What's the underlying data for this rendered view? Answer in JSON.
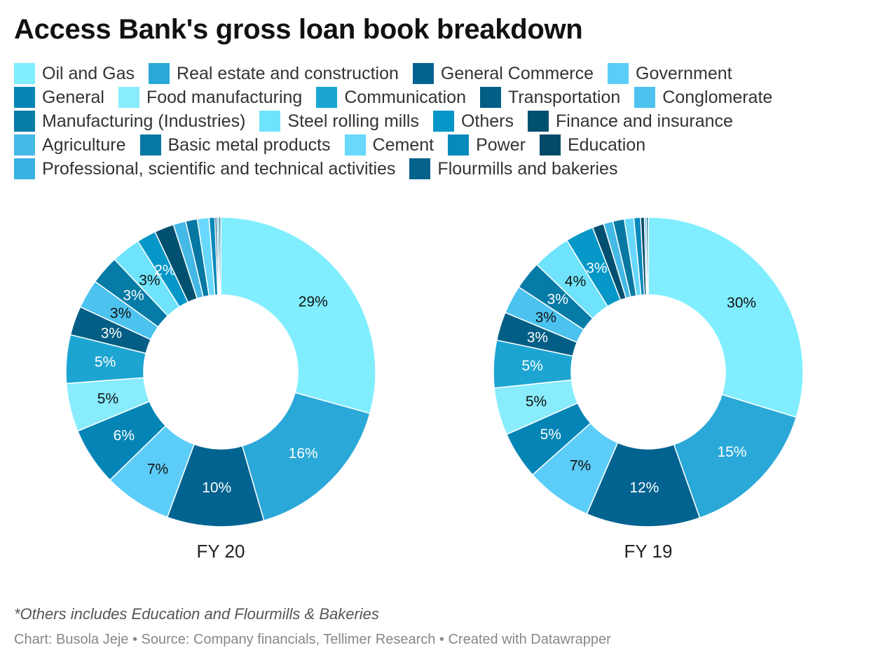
{
  "title": "Access Bank's gross loan book breakdown",
  "legend": [
    {
      "label": "Oil and Gas",
      "color": "#80eeff"
    },
    {
      "label": "Real estate and construction",
      "color": "#2aa8d8"
    },
    {
      "label": "General Commerce",
      "color": "#036390"
    },
    {
      "label": "Government",
      "color": "#5ccdf8"
    },
    {
      "label": "General",
      "color": "#0585b5"
    },
    {
      "label": "Food manufacturing",
      "color": "#88ecfd"
    },
    {
      "label": "Communication",
      "color": "#1da5d2"
    },
    {
      "label": "Transportation",
      "color": "#035e85"
    },
    {
      "label": "Conglomerate",
      "color": "#4cc2ef"
    },
    {
      "label": "Manufacturing (Industries)",
      "color": "#057ba6"
    },
    {
      "label": "Steel rolling mills",
      "color": "#6fe3fb"
    },
    {
      "label": "Others",
      "color": "#0597c8"
    },
    {
      "label": "Finance and insurance",
      "color": "#02506f"
    },
    {
      "label": "Agriculture",
      "color": "#44b9e6"
    },
    {
      "label": "Basic metal products",
      "color": "#0678a2"
    },
    {
      "label": "Cement",
      "color": "#68d8fc"
    },
    {
      "label": "Power",
      "color": "#0689bb"
    },
    {
      "label": "Education",
      "color": "#034a68"
    },
    {
      "label": "Professional, scientific and technical activities",
      "color": "#39b2e2"
    },
    {
      "label": "Flourmills and bakeries",
      "color": "#05628a"
    }
  ],
  "chart_data": [
    {
      "type": "pie",
      "label": "FY 20",
      "categories": [
        "Oil and Gas",
        "Real estate and construction",
        "General Commerce",
        "Government",
        "General",
        "Food manufacturing",
        "Communication",
        "Transportation",
        "Conglomerate",
        "Manufacturing (Industries)",
        "Steel rolling mills",
        "Others",
        "Finance and insurance",
        "Agriculture",
        "Basic metal products",
        "Cement",
        "Power",
        "Education",
        "Professional, scientific and technical activities",
        "Flourmills and bakeries"
      ],
      "values": [
        29,
        16,
        10,
        7,
        6,
        5,
        5,
        3,
        3,
        3,
        3,
        2,
        2,
        1.3,
        1.2,
        1.2,
        0.6,
        0.2,
        0.2,
        0.2
      ],
      "data_labels": [
        "29%",
        "16%",
        "10%",
        "7%",
        "6%",
        "5%",
        "5%",
        "3%",
        "3%",
        "3%",
        "3%",
        "2%",
        "",
        "",
        "",
        "",
        "",
        "",
        "",
        ""
      ]
    },
    {
      "type": "pie",
      "label": "FY 19",
      "categories": [
        "Oil and Gas",
        "Real estate and construction",
        "General Commerce",
        "Government",
        "General",
        "Food manufacturing",
        "Communication",
        "Transportation",
        "Conglomerate",
        "Manufacturing (Industries)",
        "Steel rolling mills",
        "Others",
        "Finance and insurance",
        "Agriculture",
        "Basic metal products",
        "Cement",
        "Power",
        "Education",
        "Professional, scientific and technical activities",
        "Flourmills and bakeries"
      ],
      "values": [
        30,
        15,
        12,
        7,
        5,
        5,
        5,
        3,
        3,
        3,
        4,
        3,
        1.2,
        1.0,
        1.2,
        1.0,
        0.7,
        0.4,
        0.2,
        0.2
      ],
      "data_labels": [
        "30%",
        "15%",
        "12%",
        "7%",
        "5%",
        "5%",
        "5%",
        "3%",
        "3%",
        "3%",
        "4%",
        "3%",
        "",
        "",
        "",
        "",
        "",
        "",
        "",
        ""
      ]
    }
  ],
  "footnote": "*Others includes Education and Flourmills & Bakeries",
  "credits": "Chart: Busola Jeje • Source: Company financials, Tellimer Research • Created with Datawrapper"
}
